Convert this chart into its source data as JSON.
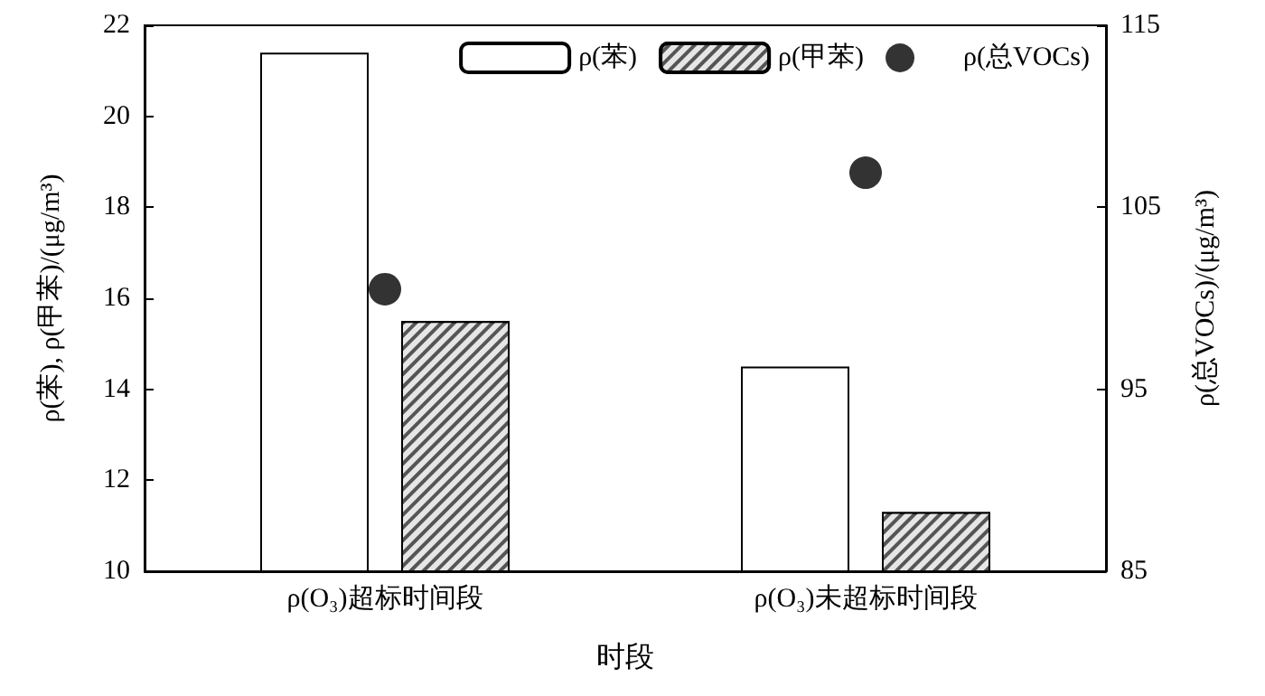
{
  "chart_data": {
    "type": "bar",
    "categories": [
      "ρ(O₃)超标时间段",
      "ρ(O₃)未超标时间段"
    ],
    "xlabel": "时段",
    "ylabel": "ρ(苯), ρ(甲苯)/(μg/m³)",
    "y2label": "ρ(总VOCs)/(μg/m³)",
    "series": [
      {
        "name": "ρ(苯)",
        "color": "#ffffff",
        "values": [
          21.4,
          14.5
        ]
      },
      {
        "name": "ρ(甲苯)",
        "color": "#555555",
        "values": [
          15.5,
          11.3
        ]
      },
      {
        "name": "ρ(总VOCs)",
        "type": "scatter",
        "axis": "y2",
        "marker": "circle",
        "color": "#000000",
        "x": [
          "ρ(O₃)超标时间段",
          "ρ(O₃)未超标时间段"
        ],
        "values": [
          100.5,
          106.9
        ]
      }
    ],
    "ylim": [
      10,
      22
    ],
    "yticks": [
      10,
      12,
      14,
      16,
      18,
      20,
      22
    ],
    "y2lim": [
      85,
      115
    ],
    "y2ticks": [
      85,
      95,
      105,
      115
    ],
    "legend": "top right",
    "grid": false
  }
}
